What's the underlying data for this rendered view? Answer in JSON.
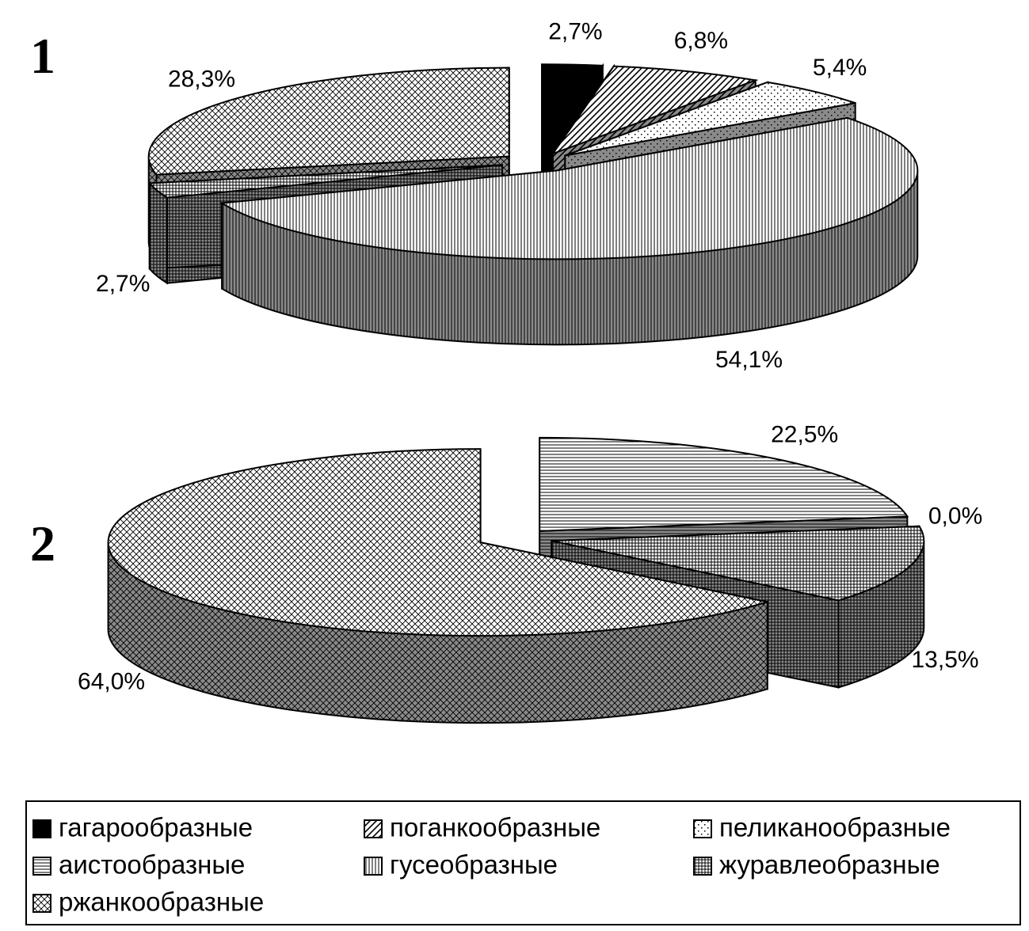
{
  "legend_position": "bottom",
  "chart_data": [
    {
      "type": "pie",
      "title": "1",
      "categories": [
        "гагарообразные",
        "поганкообразные",
        "пеликанообразные",
        "аистообразные",
        "гусеобразные",
        "журавлеобразные",
        "ржанкообразные"
      ],
      "values": [
        2.7,
        6.8,
        5.4,
        0,
        54.1,
        2.7,
        28.3
      ],
      "value_labels": [
        "2,7%",
        "6,8%",
        "5,4%",
        null,
        "54,1%",
        "2,7%",
        "28,3%"
      ],
      "patterns": [
        "solid",
        "diagonal",
        "dots",
        "horizontal",
        "vertical",
        "grid",
        "crosshatch"
      ]
    },
    {
      "type": "pie",
      "title": "2",
      "categories": [
        "гагарообразные",
        "поганкообразные",
        "пеликанообразные",
        "аистообразные",
        "гусеобразные",
        "журавлеобразные",
        "ржанкообразные"
      ],
      "values": [
        null,
        null,
        null,
        22.5,
        0,
        13.5,
        64.0
      ],
      "value_labels": [
        null,
        null,
        null,
        "22,5%",
        "0,0%",
        "13,5%",
        "64,0%"
      ],
      "patterns": [
        "solid",
        "diagonal",
        "dots",
        "horizontal",
        "vertical",
        "grid",
        "crosshatch"
      ]
    }
  ]
}
